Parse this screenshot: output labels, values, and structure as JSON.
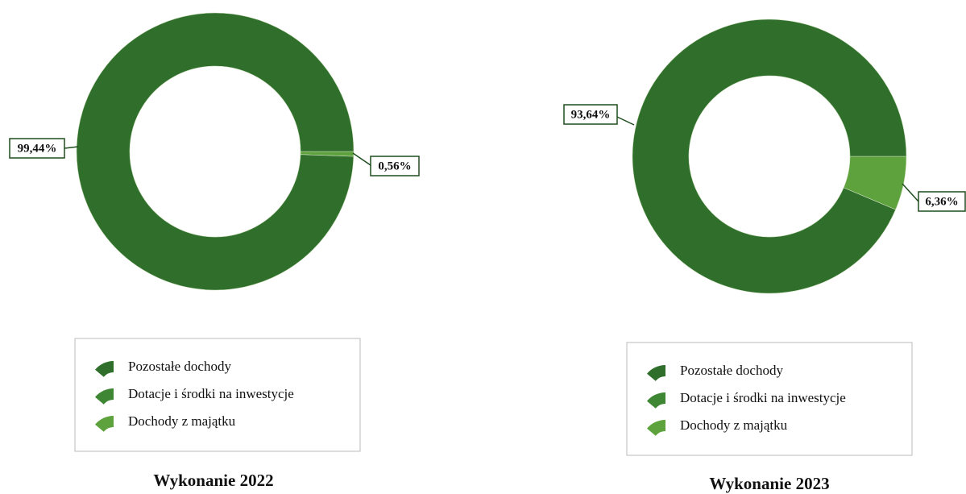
{
  "chart_data": [
    {
      "type": "pie",
      "title": "Wykonanie 2022",
      "categories": [
        "Pozostałe dochody",
        "Dotacje i środki na inwestycje",
        "Dochody z majątku"
      ],
      "values": [
        99.44,
        null,
        0.56
      ],
      "value_labels": [
        "99,44%",
        null,
        "0,56%"
      ],
      "colors": [
        "#2f6f2b",
        "#3e8634",
        "#5da23c"
      ],
      "legend": true
    },
    {
      "type": "pie",
      "title": "Wykonanie 2023",
      "categories": [
        "Pozostałe dochody",
        "Dotacje i środki na inwestycje",
        "Dochody z majątku"
      ],
      "values": [
        93.64,
        null,
        6.36
      ],
      "value_labels": [
        "93,64%",
        null,
        "6,36%"
      ],
      "colors": [
        "#2f6f2b",
        "#3e8634",
        "#5da23c"
      ],
      "legend": true
    }
  ]
}
